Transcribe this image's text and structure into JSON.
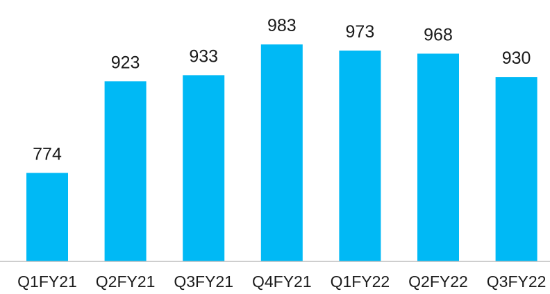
{
  "chart_data": {
    "type": "bar",
    "categories": [
      "Q1FY21",
      "Q2FY21",
      "Q3FY21",
      "Q4FY21",
      "Q1FY22",
      "Q2FY22",
      "Q3FY22"
    ],
    "values": [
      774,
      923,
      933,
      983,
      973,
      968,
      930
    ],
    "value_labels": [
      "774",
      "923",
      "933",
      "983",
      "973",
      "968",
      "930"
    ],
    "title": "",
    "xlabel": "",
    "ylabel": "",
    "ylim": [
      630,
      1000
    ],
    "grid": false,
    "legend": "none",
    "bar_color": "#00b9f5"
  }
}
